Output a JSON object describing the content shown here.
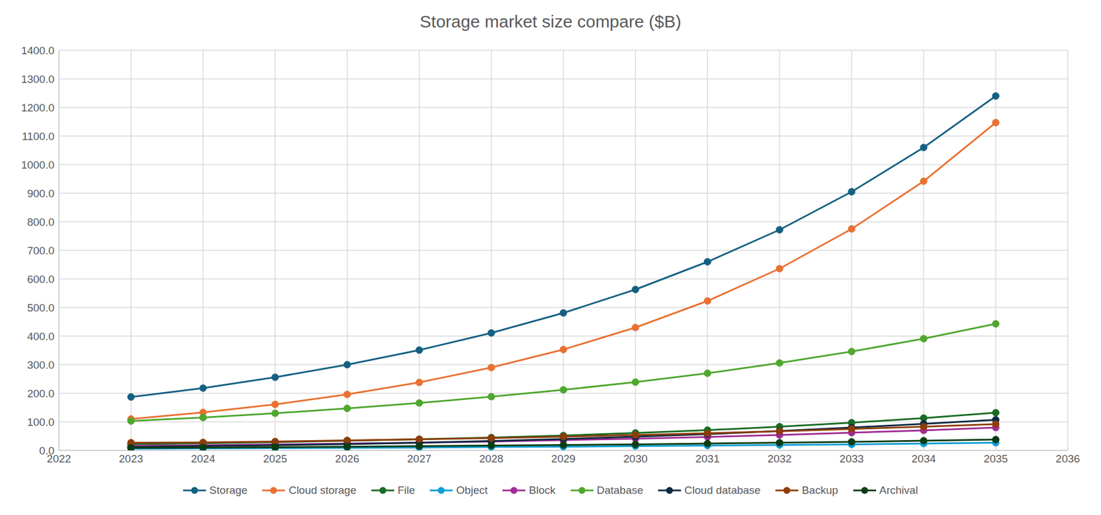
{
  "chart_data": {
    "type": "line",
    "title": "Storage market size compare ($B)",
    "x": [
      2023,
      2024,
      2025,
      2026,
      2027,
      2028,
      2029,
      2030,
      2031,
      2032,
      2033,
      2034,
      2035
    ],
    "xlim": [
      2022,
      2036
    ],
    "xticks": [
      2022,
      2023,
      2024,
      2025,
      2026,
      2027,
      2028,
      2029,
      2030,
      2031,
      2032,
      2033,
      2034,
      2035,
      2036
    ],
    "ylim": [
      0,
      1400
    ],
    "yticks": [
      {
        "value": 0,
        "label": "0.0"
      },
      {
        "value": 100,
        "label": "100.0"
      },
      {
        "value": 200,
        "label": "200.0"
      },
      {
        "value": 300,
        "label": "300.0"
      },
      {
        "value": 400,
        "label": "400.0"
      },
      {
        "value": 500,
        "label": "500.0"
      },
      {
        "value": 600,
        "label": "600.0"
      },
      {
        "value": 700,
        "label": "700.0"
      },
      {
        "value": 800,
        "label": "800.0"
      },
      {
        "value": 900,
        "label": "900.0"
      },
      {
        "value": 1000,
        "label": "1000.0"
      },
      {
        "value": 1100,
        "label": "1100.0"
      },
      {
        "value": 1200,
        "label": "1200.0"
      },
      {
        "value": 1300,
        "label": "1300.0"
      },
      {
        "value": 1400,
        "label": "1400.0"
      }
    ],
    "grid": true,
    "legend": "bottom",
    "marker": "circle",
    "line_style": "solid",
    "series": [
      {
        "name": "Storage",
        "color": "#156082",
        "values": [
          187,
          218,
          256,
          300,
          351,
          411,
          481,
          563,
          660,
          772,
          905,
          1060,
          1240
        ]
      },
      {
        "name": "Cloud storage",
        "color": "#e97132",
        "values": [
          110,
          133,
          161,
          196,
          238,
          290,
          353,
          430,
          523,
          636,
          775,
          942,
          1147
        ]
      },
      {
        "name": "File",
        "color": "#196b24",
        "values": [
          22,
          25,
          29,
          34,
          39,
          45,
          52,
          61,
          71,
          83,
          97,
          113,
          132
        ]
      },
      {
        "name": "Object",
        "color": "#0f9ed5",
        "values": [
          6,
          7,
          8,
          9,
          10,
          12,
          13,
          15,
          17,
          19,
          21,
          24,
          27
        ]
      },
      {
        "name": "Block",
        "color": "#a02b93",
        "values": [
          16,
          18,
          21,
          24,
          27,
          31,
          36,
          41,
          47,
          54,
          62,
          70,
          80
        ]
      },
      {
        "name": "Database",
        "color": "#4ea72e",
        "values": [
          103,
          115,
          130,
          147,
          166,
          188,
          212,
          239,
          270,
          306,
          346,
          391,
          443
        ]
      },
      {
        "name": "Cloud database",
        "color": "#0e2841",
        "values": [
          12,
          15,
          18,
          22,
          27,
          33,
          40,
          48,
          57,
          68,
          80,
          93,
          107
        ]
      },
      {
        "name": "Backup",
        "color": "#8e3d0a",
        "values": [
          27,
          28,
          31,
          35,
          39,
          43,
          48,
          54,
          60,
          67,
          75,
          83,
          92
        ]
      },
      {
        "name": "Archival",
        "color": "#0b3d12",
        "values": [
          9,
          10,
          11,
          13,
          15,
          17,
          19,
          21,
          24,
          27,
          30,
          34,
          38
        ]
      }
    ]
  }
}
